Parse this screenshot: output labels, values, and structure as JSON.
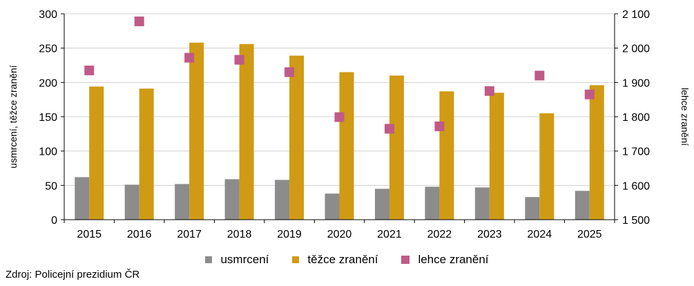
{
  "chart_data": {
    "type": "bar",
    "categories": [
      "2015",
      "2016",
      "2017",
      "2018",
      "2019",
      "2020",
      "2021",
      "2022",
      "2023",
      "2024",
      "2025"
    ],
    "series": [
      {
        "name": "usmrcení",
        "kind": "bar",
        "axis": "left",
        "color": "#8c8c8c",
        "values": [
          62,
          51,
          52,
          59,
          58,
          38,
          45,
          48,
          47,
          33,
          42
        ]
      },
      {
        "name": "těžce zranění",
        "kind": "bar",
        "axis": "left",
        "color": "#d09a14",
        "values": [
          194,
          191,
          258,
          256,
          239,
          215,
          210,
          187,
          185,
          155,
          196
        ]
      },
      {
        "name": "lehce zranění",
        "kind": "point",
        "axis": "right",
        "color": "#bf5b86",
        "values": [
          1935,
          2078,
          1972,
          1966,
          1930,
          1799,
          1765,
          1772,
          1875,
          1920,
          1865
        ]
      }
    ],
    "yleft": {
      "label": "usmrcení, těžce zranění",
      "min": 0,
      "max": 300,
      "step": 50,
      "ticks": [
        "0",
        "50",
        "100",
        "150",
        "200",
        "250",
        "300"
      ]
    },
    "yright": {
      "label": "lehce zranění",
      "min": 1500,
      "max": 2100,
      "step": 100,
      "ticks": [
        "1 500",
        "1 600",
        "1 700",
        "1 800",
        "1 900",
        "2 000",
        "2 100"
      ]
    },
    "grid": true,
    "legend_position": "bottom"
  },
  "source": "Zdroj: Policejní prezidium ČR"
}
